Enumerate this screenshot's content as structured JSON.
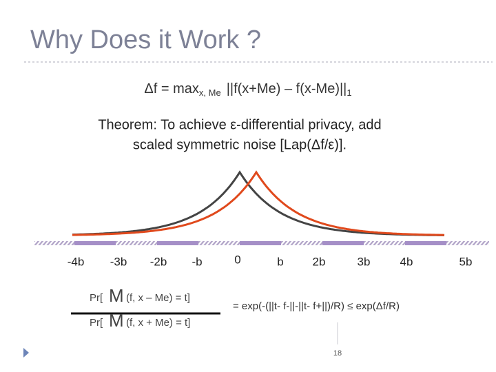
{
  "title": "Why Does it Work ?",
  "formula": {
    "main": "Δf = max",
    "sub": "x, Me",
    "norm": "||f(x+Me) – f(x-Me)||",
    "norm_sub": "1"
  },
  "theorem": [
    "Theorem: To achieve ε-differential privacy, add",
    "scaled symmetric noise [Lap(Δf/ε)]."
  ],
  "axis_labels": [
    "-4b",
    "-3b",
    "-2b",
    "-b",
    "0",
    "b",
    "2b",
    "3b",
    "4b",
    "5b"
  ],
  "ratio": {
    "numerator": {
      "prefix": "Pr[",
      "mechanism": "M",
      "rest": "(f, x – Me) = t]"
    },
    "denominator": {
      "prefix": "Pr[",
      "mechanism": "M",
      "rest": "(f, x + Me) = t]"
    },
    "result": "= exp(-(||t- f-||-||t- f+||)/R) ≤ exp(Δf/R)"
  },
  "page_number": "18"
}
